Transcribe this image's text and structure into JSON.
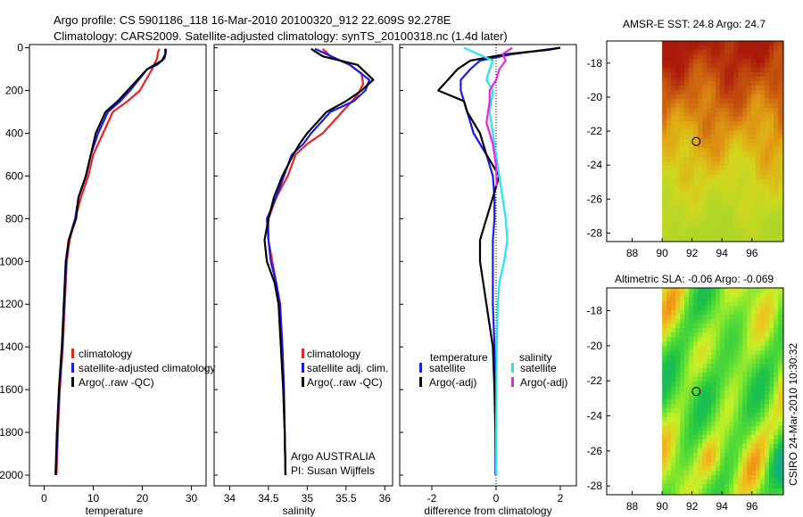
{
  "header": {
    "line1": "Argo profile: CS 5901186_118 16-Mar-2010 20100320_912 22.609S 92.278E",
    "line2": "Climatology: CARS2009. Satellite-adjusted climatology: synTS_20100318.nc (1.4d later)"
  },
  "colors": {
    "climatology": "#ee2222",
    "satellite": "#1a1aee",
    "argo": "#000000",
    "sat_salinity": "#22e8e8",
    "argo_salinity": "#ee22ee"
  },
  "chart_data": [
    {
      "type": "line",
      "id": "temperature",
      "xlabel": "temperature",
      "xlim": [
        -3,
        33
      ],
      "ylim": [
        2050,
        -15
      ],
      "xticks": [
        0,
        10,
        20,
        30
      ],
      "yticks": [
        0,
        200,
        400,
        600,
        800,
        1000,
        1200,
        1400,
        1600,
        1800,
        2000
      ],
      "series": [
        {
          "name": "climatology",
          "color": "#ee2222",
          "points": [
            [
              23.5,
              5
            ],
            [
              23.2,
              20
            ],
            [
              23.0,
              50
            ],
            [
              22.0,
              100
            ],
            [
              19.5,
              200
            ],
            [
              17,
              250
            ],
            [
              14,
              300
            ],
            [
              12,
              400
            ],
            [
              10,
              500
            ],
            [
              9,
              600
            ],
            [
              7.5,
              700
            ],
            [
              6.3,
              800
            ],
            [
              5.2,
              900
            ],
            [
              4.6,
              1000
            ],
            [
              4.2,
              1200
            ],
            [
              3.8,
              1400
            ],
            [
              3.2,
              1600
            ],
            [
              2.8,
              1800
            ],
            [
              2.5,
              2000
            ]
          ]
        },
        {
          "name": "satellite-adjusted climatology",
          "color": "#1a1aee",
          "points": [
            [
              24.8,
              5
            ],
            [
              24.8,
              20
            ],
            [
              24.5,
              50
            ],
            [
              23,
              80
            ],
            [
              21,
              100
            ],
            [
              17.5,
              200
            ],
            [
              15.5,
              250
            ],
            [
              13,
              300
            ],
            [
              11,
              400
            ],
            [
              9.5,
              500
            ],
            [
              8.5,
              600
            ],
            [
              7,
              700
            ],
            [
              6.3,
              800
            ],
            [
              5.0,
              900
            ],
            [
              4.5,
              1000
            ],
            [
              4.1,
              1200
            ],
            [
              3.7,
              1400
            ],
            [
              3.1,
              1600
            ],
            [
              2.7,
              1800
            ],
            [
              2.4,
              2000
            ]
          ]
        },
        {
          "name": "Argo(..raw -QC)",
          "color": "#000000",
          "points": [
            [
              24.7,
              5
            ],
            [
              24.7,
              30
            ],
            [
              24,
              60
            ],
            [
              21,
              100
            ],
            [
              17,
              200
            ],
            [
              15,
              250
            ],
            [
              12.5,
              300
            ],
            [
              10.5,
              400
            ],
            [
              9.5,
              500
            ],
            [
              8.5,
              600
            ],
            [
              7,
              700
            ],
            [
              6.5,
              800
            ],
            [
              5,
              900
            ],
            [
              4.4,
              1000
            ],
            [
              4.0,
              1200
            ],
            [
              3.6,
              1400
            ],
            [
              3.0,
              1600
            ],
            [
              2.6,
              1800
            ],
            [
              2.3,
              2000
            ]
          ]
        }
      ],
      "legend": [
        "climatology",
        "satellite-adjusted climatology",
        "Argo(..raw -QC)"
      ],
      "legend_position": "lower-center"
    },
    {
      "type": "line",
      "id": "salinity",
      "xlabel": "salinity",
      "xlim": [
        33.8,
        36.1
      ],
      "ylim": [
        2050,
        -15
      ],
      "xticks": [
        34,
        34.5,
        35,
        35.5,
        36
      ],
      "xtick_labels": [
        "34",
        "34.5",
        "35",
        "35.5",
        "36"
      ],
      "series": [
        {
          "name": "climatology",
          "color": "#ee2222",
          "points": [
            [
              35.2,
              5
            ],
            [
              35.3,
              40
            ],
            [
              35.55,
              80
            ],
            [
              35.7,
              120
            ],
            [
              35.72,
              170
            ],
            [
              35.65,
              220
            ],
            [
              35.45,
              300
            ],
            [
              35.2,
              400
            ],
            [
              35.0,
              450
            ],
            [
              34.85,
              500
            ],
            [
              34.75,
              600
            ],
            [
              34.6,
              700
            ],
            [
              34.5,
              800
            ],
            [
              34.5,
              900
            ],
            [
              34.55,
              1000
            ],
            [
              34.6,
              1100
            ],
            [
              34.65,
              1200
            ],
            [
              34.68,
              1400
            ],
            [
              34.7,
              1600
            ],
            [
              34.71,
              1800
            ],
            [
              34.72,
              2000
            ]
          ]
        },
        {
          "name": "satellite adj. clim.",
          "color": "#1a1aee",
          "points": [
            [
              35.1,
              5
            ],
            [
              35.25,
              30
            ],
            [
              35.55,
              80
            ],
            [
              35.8,
              150
            ],
            [
              35.75,
              200
            ],
            [
              35.6,
              250
            ],
            [
              35.3,
              300
            ],
            [
              35.05,
              400
            ],
            [
              34.95,
              450
            ],
            [
              34.8,
              500
            ],
            [
              34.7,
              600
            ],
            [
              34.6,
              700
            ],
            [
              34.48,
              800
            ],
            [
              34.5,
              900
            ],
            [
              34.53,
              1000
            ],
            [
              34.6,
              1100
            ],
            [
              34.65,
              1200
            ],
            [
              34.68,
              1400
            ],
            [
              34.7,
              1600
            ],
            [
              34.71,
              1800
            ],
            [
              34.72,
              2000
            ]
          ]
        },
        {
          "name": "Argo(..raw -QC)",
          "color": "#000000",
          "points": [
            [
              35.05,
              5
            ],
            [
              35.2,
              40
            ],
            [
              35.65,
              80
            ],
            [
              35.85,
              150
            ],
            [
              35.7,
              200
            ],
            [
              35.5,
              250
            ],
            [
              35.25,
              300
            ],
            [
              35.0,
              400
            ],
            [
              34.9,
              450
            ],
            [
              34.82,
              500
            ],
            [
              34.68,
              600
            ],
            [
              34.57,
              700
            ],
            [
              34.5,
              800
            ],
            [
              34.45,
              900
            ],
            [
              34.48,
              1000
            ],
            [
              34.58,
              1100
            ],
            [
              34.63,
              1200
            ],
            [
              34.66,
              1400
            ],
            [
              34.69,
              1600
            ],
            [
              34.71,
              1800
            ],
            [
              34.72,
              2000
            ]
          ]
        }
      ],
      "legend": [
        "climatology",
        "satellite adj. clim.",
        "Argo(..raw -QC)"
      ],
      "legend_position": "lower-center",
      "annotations": [
        "Argo AUSTRALIA",
        "PI: Susan Wijffels"
      ]
    },
    {
      "type": "line",
      "id": "difference",
      "xlabel": "difference from climatology",
      "xlim": [
        -3,
        2.5
      ],
      "ylim": [
        2050,
        -15
      ],
      "xticks": [
        -2,
        0,
        2
      ],
      "zero_line": true,
      "series": [
        {
          "name": "temperature satellite",
          "color": "#1a1aee",
          "points": [
            [
              2.0,
              0
            ],
            [
              1.5,
              10
            ],
            [
              0.5,
              30
            ],
            [
              -0.5,
              60
            ],
            [
              -0.8,
              100
            ],
            [
              -1.1,
              150
            ],
            [
              -1.1,
              200
            ],
            [
              -0.9,
              300
            ],
            [
              -0.7,
              400
            ],
            [
              -0.3,
              500
            ],
            [
              -0.1,
              600
            ],
            [
              -0.05,
              700
            ],
            [
              -0.05,
              800
            ],
            [
              -0.1,
              900
            ],
            [
              -0.1,
              1000
            ],
            [
              -0.1,
              1200
            ],
            [
              -0.05,
              1400
            ],
            [
              -0.03,
              1600
            ],
            [
              -0.02,
              1800
            ],
            [
              -0.02,
              2000
            ]
          ]
        },
        {
          "name": "Argo(-adj) temperature",
          "color": "#000000",
          "points": [
            [
              2.0,
              0
            ],
            [
              1.6,
              10
            ],
            [
              0.3,
              30
            ],
            [
              -0.8,
              60
            ],
            [
              -1.2,
              100
            ],
            [
              -1.8,
              200
            ],
            [
              -1.0,
              250
            ],
            [
              -0.9,
              300
            ],
            [
              -0.5,
              400
            ],
            [
              -0.3,
              500
            ],
            [
              0.1,
              600
            ],
            [
              -0.1,
              700
            ],
            [
              -0.5,
              900
            ],
            [
              -0.5,
              1000
            ],
            [
              -0.3,
              1200
            ],
            [
              -0.1,
              1400
            ],
            [
              -0.05,
              1600
            ],
            [
              -0.02,
              1800
            ],
            [
              0.0,
              2000
            ]
          ]
        },
        {
          "name": "salinity satellite",
          "color": "#22e8e8",
          "points": [
            [
              -1.0,
              0
            ],
            [
              -0.1,
              60
            ],
            [
              -0.2,
              100
            ],
            [
              -0.3,
              150
            ],
            [
              -0.1,
              200
            ],
            [
              -0.2,
              300
            ],
            [
              -0.1,
              400
            ],
            [
              0.0,
              500
            ],
            [
              0.1,
              600
            ],
            [
              0.2,
              700
            ],
            [
              0.3,
              800
            ],
            [
              0.35,
              900
            ],
            [
              0.25,
              1000
            ],
            [
              0.1,
              1100
            ],
            [
              0.05,
              1200
            ],
            [
              0.02,
              1400
            ],
            [
              0.01,
              1600
            ],
            [
              0.0,
              1800
            ],
            [
              0.0,
              2000
            ]
          ]
        },
        {
          "name": "Argo(-adj) salinity",
          "color": "#ee22ee",
          "points": [
            [
              0.5,
              0
            ],
            [
              0.2,
              30
            ],
            [
              0.3,
              60
            ],
            [
              0.1,
              100
            ],
            [
              0.0,
              150
            ],
            [
              -0.2,
              200
            ],
            [
              -0.2,
              250
            ],
            [
              -0.3,
              350
            ],
            [
              -0.1,
              450
            ],
            [
              0.0,
              550
            ],
            [
              0.02,
              650
            ]
          ]
        }
      ],
      "legend_temperature": {
        "title": "temperature",
        "items": [
          "satellite",
          "Argo(-adj)"
        ]
      },
      "legend_salinity": {
        "title": "salinity",
        "items": [
          "satellite",
          "Argo(-adj)"
        ]
      }
    },
    {
      "type": "heatmap",
      "id": "sst",
      "title": "AMSR-E SST: 24.8 Argo: 24.7",
      "xlim": [
        86.3,
        98.1
      ],
      "ylim": [
        -28.5,
        -16.7
      ],
      "xticks": [
        88,
        90,
        92,
        94,
        96
      ],
      "yticks": [
        -18,
        -20,
        -22,
        -24,
        -26,
        -28
      ],
      "data_start_lon": 90,
      "marker": {
        "lon": 92.278,
        "lat": -22.609
      }
    },
    {
      "type": "heatmap",
      "id": "sla",
      "title": "Altimetric SLA: -0.06 Argo: -0.069",
      "xlim": [
        86.3,
        98.1
      ],
      "ylim": [
        -28.5,
        -16.7
      ],
      "xticks": [
        88,
        90,
        92,
        94,
        96
      ],
      "yticks": [
        -18,
        -20,
        -22,
        -24,
        -26,
        -28
      ],
      "data_start_lon": 90,
      "marker": {
        "lon": 92.278,
        "lat": -22.609
      }
    }
  ],
  "footer_stamp": "CSIRO 24-Mar-2010 10:30:32"
}
